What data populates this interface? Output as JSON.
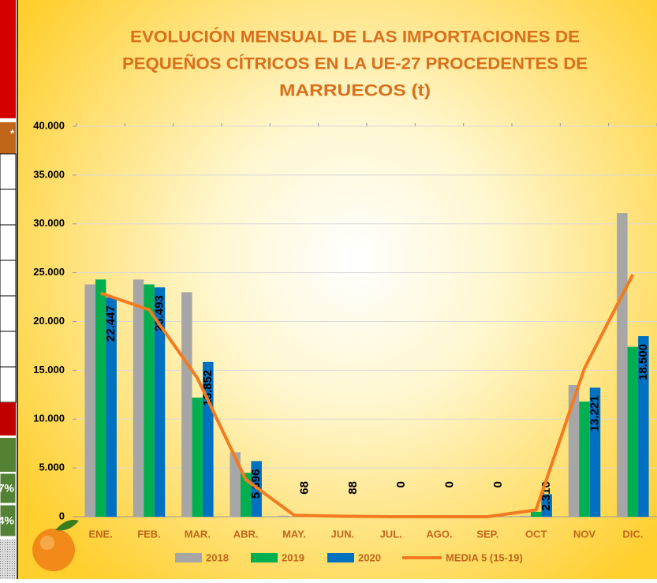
{
  "sidebar": {
    "cells": [
      "*",
      "7%",
      "4%"
    ]
  },
  "chart_data": {
    "type": "bar",
    "title_lines": [
      "EVOLUCIÓN MENSUAL DE LAS IMPORTACIONES DE",
      "PEQUEÑOS CÍTRICOS EN LA UE-27 PROCEDENTES DE",
      "MARRUECOS (t)"
    ],
    "categories": [
      "ENE.",
      "FEB.",
      "MAR.",
      "ABR.",
      "MAY.",
      "JUN.",
      "JUL.",
      "AGO.",
      "SEP.",
      "OCT",
      "NOV",
      "DIC."
    ],
    "series": [
      {
        "name": "2018",
        "color": "#a6a6a6",
        "values": [
          23800,
          24300,
          23000,
          6600,
          100,
          0,
          0,
          0,
          0,
          100,
          13500,
          31100
        ]
      },
      {
        "name": "2019",
        "color": "#00b050",
        "values": [
          24300,
          23800,
          12200,
          4500,
          0,
          0,
          0,
          0,
          0,
          500,
          11800,
          17400
        ]
      },
      {
        "name": "2020",
        "color": "#0070c0",
        "values": [
          22447,
          23493,
          15852,
          5696,
          68,
          88,
          0,
          0,
          0,
          2310,
          13221,
          18500
        ],
        "value_labels": [
          "22.447",
          "23.493",
          "15.852",
          "5.696",
          "68",
          "88",
          "0",
          "0",
          "0",
          "2.310",
          "13.221",
          "18.500"
        ]
      },
      {
        "name": "MEDIA 5 (15-19)",
        "type": "line",
        "color": "#f47a20",
        "values": [
          22900,
          21200,
          14200,
          3800,
          150,
          50,
          0,
          0,
          0,
          700,
          15200,
          24800
        ]
      }
    ],
    "ylim": [
      0,
      40000
    ],
    "yticks": [
      0,
      {
        "value": 5000,
        "label": "5.000"
      },
      {
        "value": 10000,
        "label": "10.000"
      },
      {
        "value": 15000,
        "label": "15.000"
      },
      {
        "value": 20000,
        "label": "20.000"
      },
      {
        "value": 25000,
        "label": "25.000"
      },
      {
        "value": 30000,
        "label": "30.000"
      },
      {
        "value": 35000,
        "label": "35.000"
      },
      {
        "value": 40000,
        "label": "40.000"
      }
    ],
    "grid": true
  }
}
